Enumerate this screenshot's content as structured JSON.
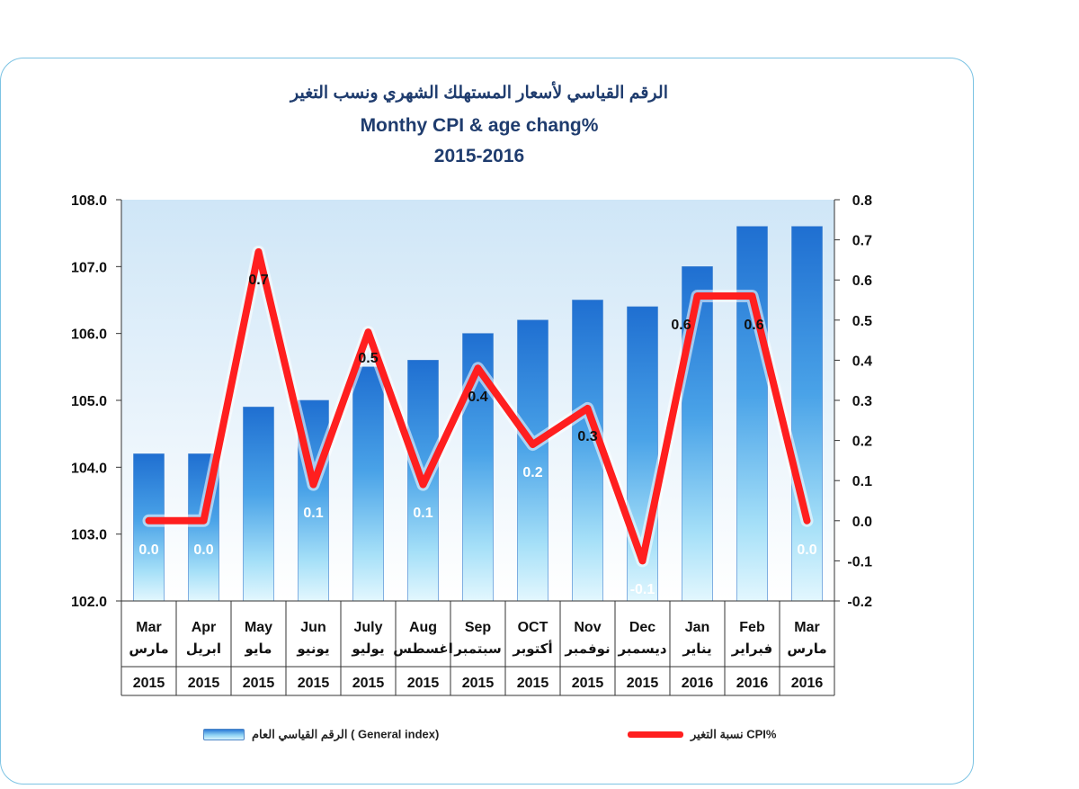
{
  "title_ar": "الرقم القياسي لأسعار المستهلك الشهري ونسب التغير",
  "title_en": "Monthy CPI & age chang%",
  "title_years": "2015-2016",
  "legend": {
    "bar_label": "الرقم القياسي العام ( General index)",
    "line_label": "نسبة التغير CPI%"
  },
  "colors": {
    "bar_top": "#2c7bd6",
    "bar_bottom": "#d7f3fd",
    "line": "#ff1f1f",
    "title": "#1f3c6e",
    "frame": "#7cc3e3"
  },
  "chart_data": {
    "type": "bar",
    "categories": [
      {
        "en": "Mar",
        "ar": "مارس",
        "year": "2015"
      },
      {
        "en": "Apr",
        "ar": "ابريل",
        "year": "2015"
      },
      {
        "en": "May",
        "ar": "مايو",
        "year": "2015"
      },
      {
        "en": "Jun",
        "ar": "يونيو",
        "year": "2015"
      },
      {
        "en": "July",
        "ar": "يوليو",
        "year": "2015"
      },
      {
        "en": "Aug",
        "ar": "اغسطس",
        "year": "2015"
      },
      {
        "en": "Sep",
        "ar": "سبتمبر",
        "year": "2015"
      },
      {
        "en": "OCT",
        "ar": "أكتوبر",
        "year": "2015"
      },
      {
        "en": "Nov",
        "ar": "نوفمبر",
        "year": "2015"
      },
      {
        "en": "Dec",
        "ar": "ديسمبر",
        "year": "2015"
      },
      {
        "en": "Jan",
        "ar": "يناير",
        "year": "2016"
      },
      {
        "en": "Feb",
        "ar": "فبراير",
        "year": "2016"
      },
      {
        "en": "Mar",
        "ar": "مارس",
        "year": "2016"
      }
    ],
    "series": [
      {
        "type": "bar",
        "axis": "left",
        "values": [
          104.2,
          104.2,
          104.9,
          105.0,
          105.5,
          105.6,
          106.0,
          106.2,
          106.5,
          106.4,
          107.0,
          107.6,
          107.6
        ]
      },
      {
        "type": "line",
        "axis": "right",
        "values": [
          0.0,
          0.0,
          0.67,
          0.09,
          0.47,
          0.09,
          0.38,
          0.19,
          0.28,
          -0.1,
          0.56,
          0.56,
          0.0
        ],
        "labels": [
          "0.0",
          "0.0",
          "0.7",
          "0.1",
          "0.5",
          "0.1",
          "0.4",
          "0.2",
          "0.3",
          "-0.1",
          "0.6",
          "0.6",
          "0.0"
        ]
      }
    ],
    "y_left": {
      "min": 102.0,
      "max": 108.0,
      "ticks": [
        "102.0",
        "103.0",
        "104.0",
        "105.0",
        "106.0",
        "107.0",
        "108.0"
      ]
    },
    "y_right": {
      "min": -0.2,
      "max": 0.8,
      "ticks": [
        "-0.2",
        "-0.1",
        "0.0",
        "0.1",
        "0.2",
        "0.3",
        "0.4",
        "0.5",
        "0.6",
        "0.7",
        "0.8"
      ]
    },
    "grid": false,
    "legend_position": "bottom"
  }
}
